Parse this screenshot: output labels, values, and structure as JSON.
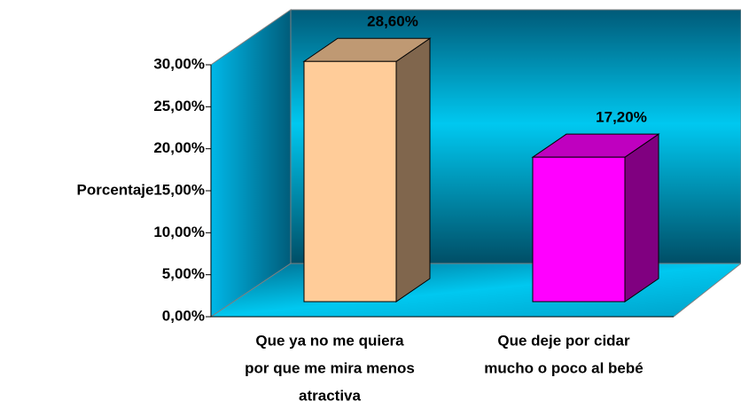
{
  "chart_data": {
    "type": "bar3d",
    "y_label": "Porcentaje",
    "categories": [
      [
        "Que ya no me quiera",
        "por que me mira menos",
        "atractiva"
      ],
      [
        "Que deje por cidar",
        "mucho o poco al bebé"
      ]
    ],
    "values": [
      28.6,
      17.2
    ],
    "value_labels": [
      "28,60%",
      "17,20%"
    ],
    "colors": [
      "#FFCC99",
      "#FF00FF"
    ],
    "ylim": [
      0,
      30
    ],
    "yticks": [
      {
        "value": 0,
        "label": "0,00%"
      },
      {
        "value": 5,
        "label": "5,00%"
      },
      {
        "value": 10,
        "label": "10,00%"
      },
      {
        "value": 15,
        "label": "15,00%"
      },
      {
        "value": 20,
        "label": "20,00%"
      },
      {
        "value": 25,
        "label": "25,00%"
      },
      {
        "value": 30,
        "label": "30,00%"
      }
    ]
  }
}
